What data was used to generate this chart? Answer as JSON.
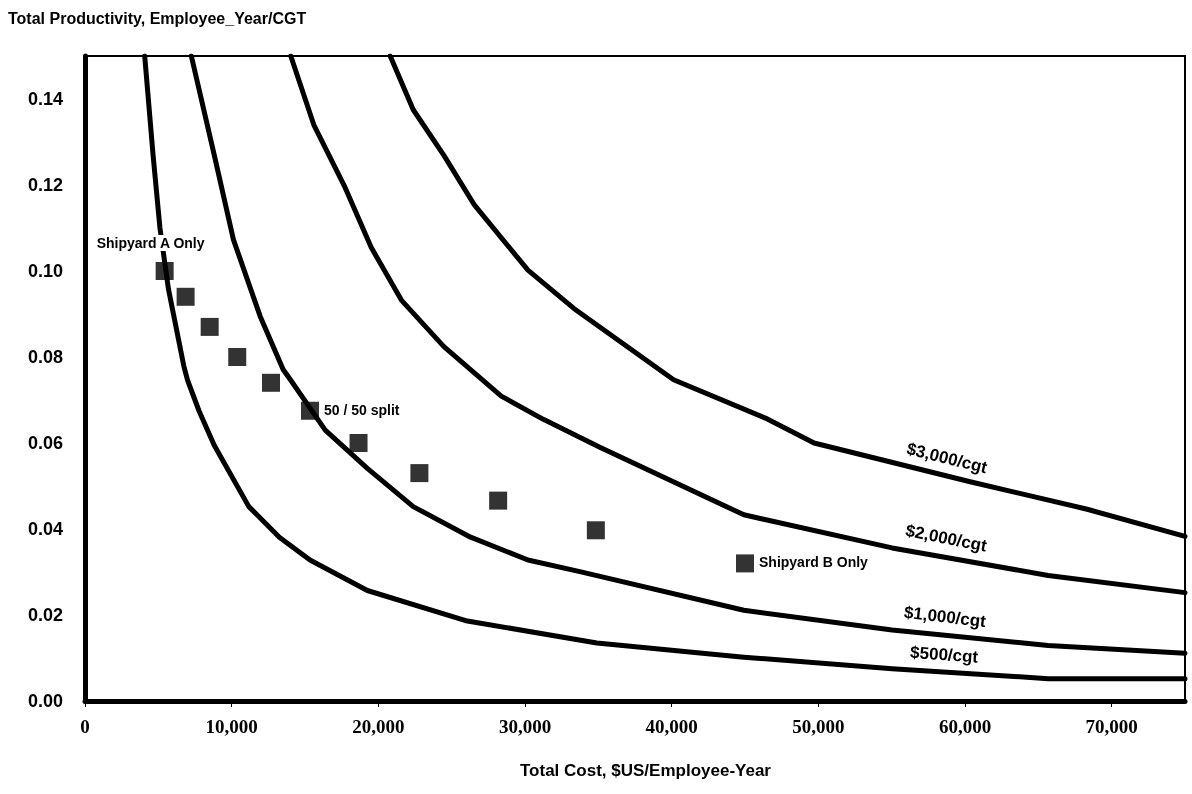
{
  "chart_data": {
    "type": "line",
    "ylabel": "Total Productivity, Employee_Year/CGT",
    "xlabel": "Total Cost, $US/Employee-Year",
    "xlim": [
      0,
      75000
    ],
    "ylim": [
      0,
      0.15
    ],
    "xticks": [
      0,
      {
        "value": 10000,
        "label": "10,000"
      },
      {
        "value": 20000,
        "label": "20,000"
      },
      {
        "value": 30000,
        "label": "30,000"
      },
      {
        "value": 40000,
        "label": "40,000"
      },
      {
        "value": 50000,
        "label": "50,000"
      },
      {
        "value": 60000,
        "label": "60,000"
      },
      {
        "value": 70000,
        "label": "70,000"
      }
    ],
    "yticks": [
      {
        "value": 0,
        "label": "0.00"
      },
      {
        "value": 0.02,
        "label": "0.02"
      },
      {
        "value": 0.04,
        "label": "0.04"
      },
      {
        "value": 0.06,
        "label": "0.06"
      },
      {
        "value": 0.08,
        "label": "0.08"
      },
      {
        "value": 0.1,
        "label": "0.10"
      },
      {
        "value": 0.12,
        "label": "0.12"
      },
      {
        "value": 0.14,
        "label": "0.14"
      }
    ],
    "series": [
      {
        "name": "$500/cgt",
        "marker": "none",
        "color": "#000000",
        "x": [
          4070,
          4640,
          5110,
          5690,
          6730,
          6990,
          7770,
          8810,
          11170,
          13250,
          15340,
          19250,
          26070,
          34900,
          44920,
          55030,
          65670,
          75000
        ],
        "values": [
          0.15,
          0.127,
          0.11,
          0.0958,
          0.078,
          0.0746,
          0.0675,
          0.0595,
          0.0452,
          0.0381,
          0.0328,
          0.0257,
          0.0186,
          0.0135,
          0.0102,
          0.0075,
          0.0052,
          0.0052
        ]
      },
      {
        "name": "$1,000/cgt",
        "marker": "none",
        "color": "#000000",
        "x": [
          7250,
          8810,
          10120,
          11940,
          13510,
          14030,
          16380,
          19250,
          22380,
          26290,
          30200,
          33740,
          44920,
          55030,
          65670,
          75000
        ],
        "values": [
          0.15,
          0.127,
          0.1073,
          0.0895,
          0.0771,
          0.0746,
          0.063,
          0.0541,
          0.0452,
          0.0381,
          0.0328,
          0.0301,
          0.0211,
          0.0165,
          0.0129,
          0.0111
        ]
      },
      {
        "name": "$2,000/cgt",
        "marker": "none",
        "color": "#000000",
        "x": [
          14030,
          15600,
          17680,
          19510,
          21600,
          24470,
          28380,
          31250,
          35100,
          44920,
          55030,
          65670,
          75000
        ],
        "values": [
          0.15,
          0.134,
          0.1198,
          0.1055,
          0.0931,
          0.0824,
          0.0709,
          0.0655,
          0.059,
          0.0433,
          0.0356,
          0.0292,
          0.0252
        ]
      },
      {
        "name": "$3,000/cgt",
        "marker": "none",
        "color": "#000000",
        "x": [
          20810,
          22380,
          24470,
          26560,
          30200,
          33330,
          40130,
          46520,
          49710,
          60350,
          68330,
          75000
        ],
        "values": [
          0.15,
          0.1375,
          0.1269,
          0.1153,
          0.1002,
          0.0913,
          0.0747,
          0.0656,
          0.06,
          0.051,
          0.0446,
          0.0383
        ]
      },
      {
        "type": "scatter",
        "marker": "square",
        "color": "#000000",
        "x": [
          5430,
          6860,
          8500,
          10380,
          12680,
          15340,
          18650,
          22800,
          28170,
          34830,
          45000
        ],
        "values": [
          0.1,
          0.094,
          0.087,
          0.08,
          0.074,
          0.0675,
          0.06,
          0.053,
          0.0466,
          0.0397,
          0.032
        ]
      }
    ],
    "annotations": [
      {
        "text": "Shipyard A Only",
        "x": 5430,
        "y": 0.1
      },
      {
        "text": "50 / 50 split",
        "x": 15340,
        "y": 0.0675
      },
      {
        "text": "Shipyard B Only",
        "x": 45000,
        "y": 0.032
      }
    ]
  }
}
